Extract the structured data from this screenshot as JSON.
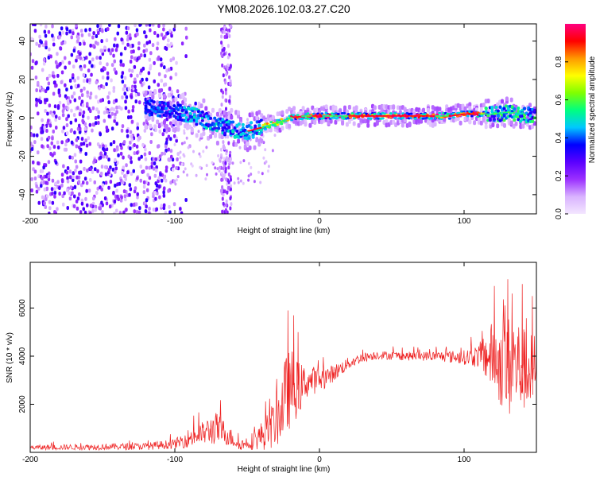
{
  "title": "YM08.2026.102.03.27.C20",
  "chart_data": [
    {
      "type": "heatmap",
      "title": "YM08.2026.102.03.27.C20",
      "xlabel": "Height of straight line (km)",
      "ylabel": "Frequency (Hz)",
      "xlim": [
        -200,
        150
      ],
      "ylim": [
        -50,
        49
      ],
      "xticks": [
        -200,
        -100,
        0,
        100
      ],
      "yticks": [
        -40,
        -20,
        0,
        20,
        40
      ],
      "colorbar": {
        "label": "Normalized spectral amplitude",
        "range": [
          0,
          1
        ],
        "ticks": [
          0.0,
          0.2,
          0.4,
          0.6,
          0.8
        ],
        "colors": [
          "#f3e6ff",
          "#d9b3ff",
          "#9b30ff",
          "#5a00ff",
          "#0000ff",
          "#00c8ff",
          "#00ff80",
          "#7fff00",
          "#ffff00",
          "#ff9900",
          "#ff0000",
          "#ff0080"
        ]
      },
      "ridge": {
        "x": [
          -110,
          -100,
          -90,
          -80,
          -70,
          -60,
          -50,
          -45,
          -40,
          -30,
          -20,
          -10,
          0,
          20,
          40,
          60,
          80,
          90,
          100,
          110,
          120,
          130,
          140,
          150
        ],
        "frequency": [
          5,
          3,
          2,
          -1,
          -4,
          -6,
          -7,
          -6,
          -5,
          -3,
          0,
          1,
          1,
          1,
          1,
          1,
          1,
          1,
          2,
          2,
          2,
          3,
          2,
          1
        ]
      }
    },
    {
      "type": "line",
      "xlabel": "Height of straight line (km)",
      "ylabel": "SNR (10 * v/v)",
      "xlim": [
        -200,
        150
      ],
      "ylim": [
        0,
        7900
      ],
      "xticks": [
        -200,
        -100,
        0,
        100
      ],
      "yticks": [
        2000,
        4000,
        6000
      ],
      "color": "#ee2222",
      "envelope": {
        "x": [
          -200,
          -120,
          -100,
          -90,
          -80,
          -72,
          -65,
          -55,
          -45,
          -35,
          -28,
          -25,
          -22,
          -18,
          -15,
          -10,
          -5,
          0,
          10,
          20,
          30,
          40,
          60,
          80,
          100,
          110,
          120,
          125,
          130,
          135,
          140,
          145,
          150
        ],
        "mean": [
          200,
          250,
          350,
          600,
          800,
          1000,
          800,
          300,
          500,
          900,
          1500,
          2100,
          2500,
          2800,
          2600,
          2900,
          3000,
          3000,
          3300,
          3700,
          3950,
          4050,
          4000,
          4000,
          3950,
          4000,
          4000,
          3700,
          3500,
          3700,
          3500,
          3300,
          3600
        ],
        "amplitude": [
          100,
          150,
          200,
          400,
          500,
          700,
          500,
          200,
          400,
          800,
          1200,
          1600,
          1700,
          1500,
          1200,
          700,
          600,
          500,
          350,
          250,
          200,
          180,
          180,
          200,
          300,
          500,
          1500,
          1800,
          2200,
          2200,
          1800,
          1600,
          1500
        ],
        "spikes": [
          {
            "x": -22,
            "value": 5900
          },
          {
            "x": -18,
            "value": 5700
          },
          {
            "x": -15,
            "value": 5000
          },
          {
            "x": 130,
            "value": 7200
          },
          {
            "x": 140,
            "value": 7000
          },
          {
            "x": 147,
            "value": 6500
          }
        ]
      }
    }
  ]
}
